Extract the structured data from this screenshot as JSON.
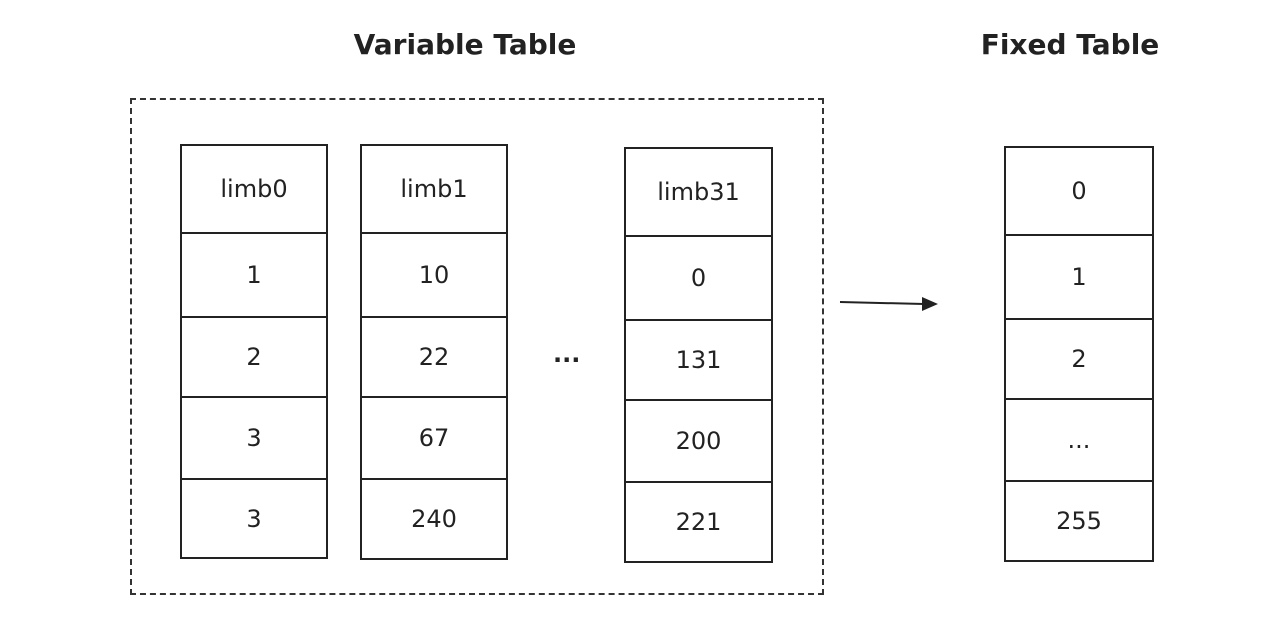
{
  "variable_table": {
    "title": "Variable Table",
    "columns": [
      {
        "cells": [
          "limb0",
          "1",
          "2",
          "3",
          "3"
        ]
      },
      {
        "cells": [
          "limb1",
          "10",
          "22",
          "67",
          "240"
        ]
      },
      {
        "cells": [
          "limb31",
          "0",
          "131",
          "200",
          "221"
        ]
      }
    ],
    "ellipsis": "..."
  },
  "fixed_table": {
    "title": "Fixed Table",
    "cells": [
      "0",
      "1",
      "2",
      "...",
      "255"
    ]
  }
}
